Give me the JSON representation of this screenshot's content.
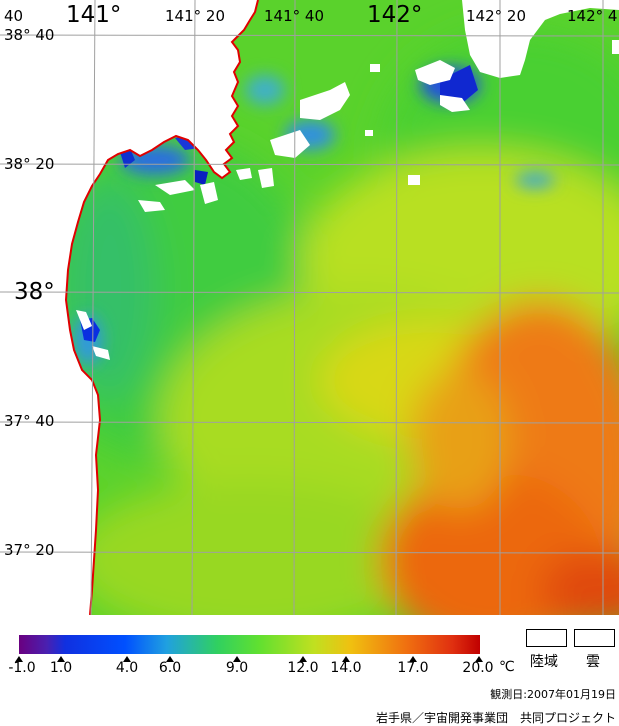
{
  "map": {
    "longitude_labels": [
      {
        "text": "40",
        "major": false
      },
      {
        "text": "141°",
        "major": true
      },
      {
        "text": "141° 20",
        "major": false
      },
      {
        "text": "141° 40",
        "major": false
      },
      {
        "text": "142°",
        "major": true
      },
      {
        "text": "142° 20",
        "major": false
      },
      {
        "text": "142° 4",
        "major": false
      }
    ],
    "latitude_labels": [
      {
        "text": "38° 40",
        "major": false
      },
      {
        "text": "38° 20",
        "major": false
      },
      {
        "text": "38°",
        "major": true
      },
      {
        "text": "37° 40",
        "major": false
      },
      {
        "text": "37° 20",
        "major": false
      }
    ]
  },
  "colors": {
    "land": "#ffffff",
    "cloud": "#ffffff",
    "coastline": "#e00000",
    "grid": "#a0a0a0"
  },
  "scale": {
    "tick_labels": [
      "-1.0",
      "1.0",
      "4.0",
      "6.0",
      "9.0",
      "12.0",
      "14.0",
      "17.0",
      "20.0"
    ],
    "unit": "℃"
  },
  "legend": {
    "land_label": "陸域",
    "cloud_label": "雲"
  },
  "footer": {
    "observation_date": "観測日:2007年01月19日",
    "credit": "岩手県／宇宙開発事業団　共同プロジェクト"
  }
}
